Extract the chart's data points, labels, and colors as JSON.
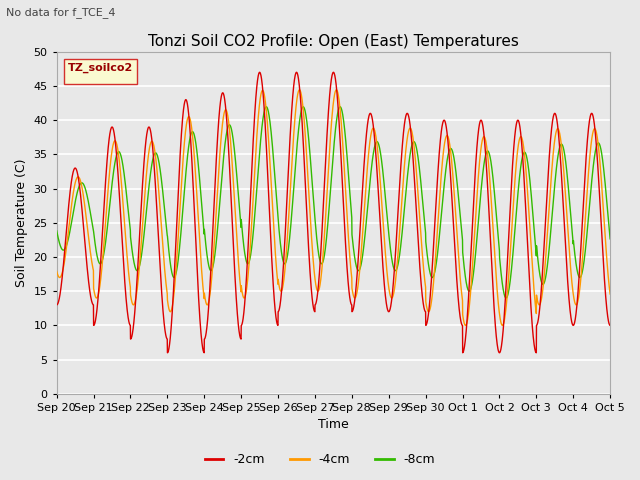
{
  "title": "Tonzi Soil CO2 Profile: Open (East) Temperatures",
  "subtitle": "No data for f_TCE_4",
  "xlabel": "Time",
  "ylabel": "Soil Temperature (C)",
  "legend_label": "TZ_soilco2",
  "series_labels": [
    "-2cm",
    "-4cm",
    "-8cm"
  ],
  "series_colors": [
    "#dd0000",
    "#ff9900",
    "#33bb00"
  ],
  "ylim": [
    0,
    50
  ],
  "xtick_labels": [
    "Sep 20",
    "Sep 21",
    "Sep 22",
    "Sep 23",
    "Sep 24",
    "Sep 25",
    "Sep 26",
    "Sep 27",
    "Sep 28",
    "Sep 29",
    "Sep 30",
    "Oct 1",
    "Oct 2",
    "Oct 3",
    "Oct 4",
    "Oct 5"
  ],
  "fig_bg_color": "#e8e8e8",
  "plot_bg_color": "#e8e8e8",
  "grid_color": "#ffffff",
  "title_fontsize": 11,
  "axis_fontsize": 9,
  "tick_fontsize": 8,
  "day_peaks": [
    33,
    39,
    39,
    43,
    44,
    47,
    47,
    47,
    41,
    41,
    40,
    40,
    40,
    41,
    41
  ],
  "day_troughs_2cm": [
    13,
    10,
    8,
    6,
    8,
    10,
    12,
    13,
    12,
    12,
    10,
    6,
    6,
    10,
    10
  ],
  "day_troughs_4cm": [
    17,
    14,
    13,
    12,
    13,
    14,
    15,
    15,
    14,
    14,
    12,
    10,
    10,
    13,
    13
  ],
  "day_troughs_8cm": [
    21,
    19,
    18,
    17,
    18,
    19,
    19,
    19,
    18,
    18,
    17,
    15,
    14,
    16,
    17
  ]
}
